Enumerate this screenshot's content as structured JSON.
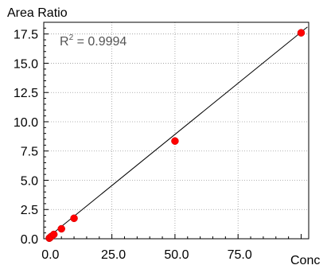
{
  "chart_data": {
    "type": "scatter",
    "ylabel": "Area Ratio",
    "xlabel": "Conc",
    "xlim": [
      -2,
      103
    ],
    "ylim": [
      0,
      18.5
    ],
    "x_ticks": [
      "0.0",
      "25.0",
      "50.0",
      "75.0"
    ],
    "x_tick_values": [
      0,
      25,
      50,
      75
    ],
    "y_ticks": [
      "0.0",
      "2.5",
      "5.0",
      "7.5",
      "10.0",
      "12.5",
      "15.0",
      "17.5"
    ],
    "y_tick_values": [
      0,
      2.5,
      5,
      7.5,
      10,
      12.5,
      15,
      17.5
    ],
    "grid": true,
    "annotation": {
      "prefix": "R",
      "superscript": "2",
      "text": " = 0.9994"
    },
    "series": [
      {
        "points": [
          {
            "x": 0.2,
            "y": 0.05
          },
          {
            "x": 0.5,
            "y": 0.1
          },
          {
            "x": 1.0,
            "y": 0.2
          },
          {
            "x": 2.0,
            "y": 0.37
          },
          {
            "x": 5.0,
            "y": 0.85
          },
          {
            "x": 10.0,
            "y": 1.75
          },
          {
            "x": 50.0,
            "y": 8.35
          },
          {
            "x": 100.0,
            "y": 17.6
          }
        ],
        "color": "#ff0000"
      }
    ],
    "fit_line": {
      "x": [
        -1,
        102.5
      ],
      "y": [
        -0.17,
        18.1
      ],
      "color": "#000000"
    }
  }
}
